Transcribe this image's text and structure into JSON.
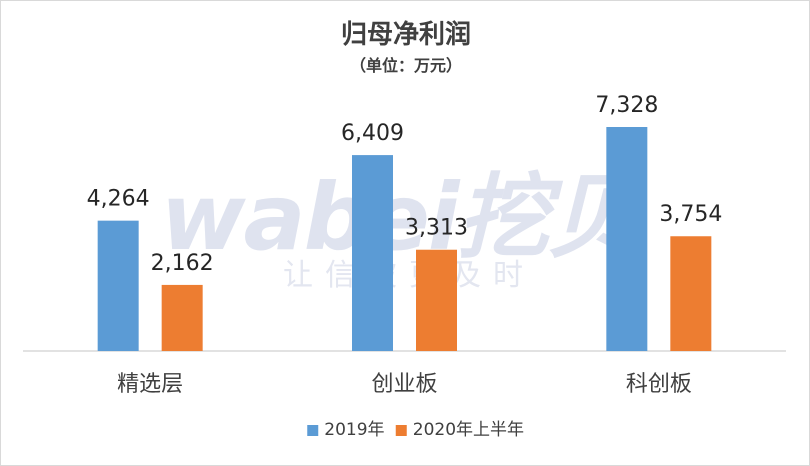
{
  "chart_data": {
    "type": "bar",
    "title": "归母净利润",
    "subtitle": "（单位：万元）",
    "categories": [
      "精选层",
      "创业板",
      "科创板"
    ],
    "series": [
      {
        "name": "2019年",
        "values": [
          4264,
          6409,
          7328
        ],
        "labels": [
          "4,264",
          "6,409",
          "7,328"
        ],
        "color": "#5b9bd5"
      },
      {
        "name": "2020年上半年",
        "values": [
          2162,
          3313,
          3754
        ],
        "labels": [
          "2,162",
          "3,313",
          "3,754"
        ],
        "color": "#ed7d31"
      }
    ],
    "ylim": [
      0,
      8000
    ],
    "xlabel": "",
    "ylabel": "",
    "grid": false,
    "legend": "bottom"
  },
  "watermark": {
    "brand": "wabei挖贝",
    "tagline": "让信披更及时"
  }
}
